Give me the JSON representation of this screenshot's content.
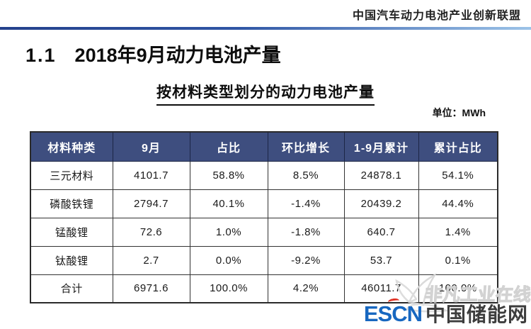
{
  "header": {
    "org_name": "中国汽车动力电池产业创新联盟"
  },
  "title": {
    "number": "1.1",
    "text": "2018年9月动力电池产量"
  },
  "subtitle": "按材料类型划分的动力电池产量",
  "unit_label": "单位：MWh",
  "table": {
    "columns": [
      "材料种类",
      "9月",
      "占比",
      "环比增长",
      "1-9月累计",
      "累计占比"
    ],
    "rows": [
      [
        "三元材料",
        "4101.7",
        "58.8%",
        "8.5%",
        "24878.1",
        "54.1%"
      ],
      [
        "磷酸铁锂",
        "2794.7",
        "40.1%",
        "-1.4%",
        "20439.2",
        "44.4%"
      ],
      [
        "锰酸锂",
        "72.6",
        "1.0%",
        "-1.8%",
        "640.7",
        "1.4%"
      ],
      [
        "钛酸锂",
        "2.7",
        "0.0%",
        "-9.2%",
        "53.7",
        "0.1%"
      ],
      [
        "合计",
        "6971.6",
        "100.0%",
        "4.2%",
        "46011.7",
        "100.0%"
      ]
    ]
  },
  "watermark": {
    "text": "非凡工业在线"
  },
  "logo": {
    "escn": "ESCN",
    "site_name": "中国储能网"
  },
  "colors": {
    "header_bg": "#3E4E7F",
    "rule_start": "#24418C",
    "rule_end": "#9CC3E8",
    "escn_blue": "#1767C0",
    "site_gray": "#3D3D3D",
    "accent_red": "#E03022"
  }
}
